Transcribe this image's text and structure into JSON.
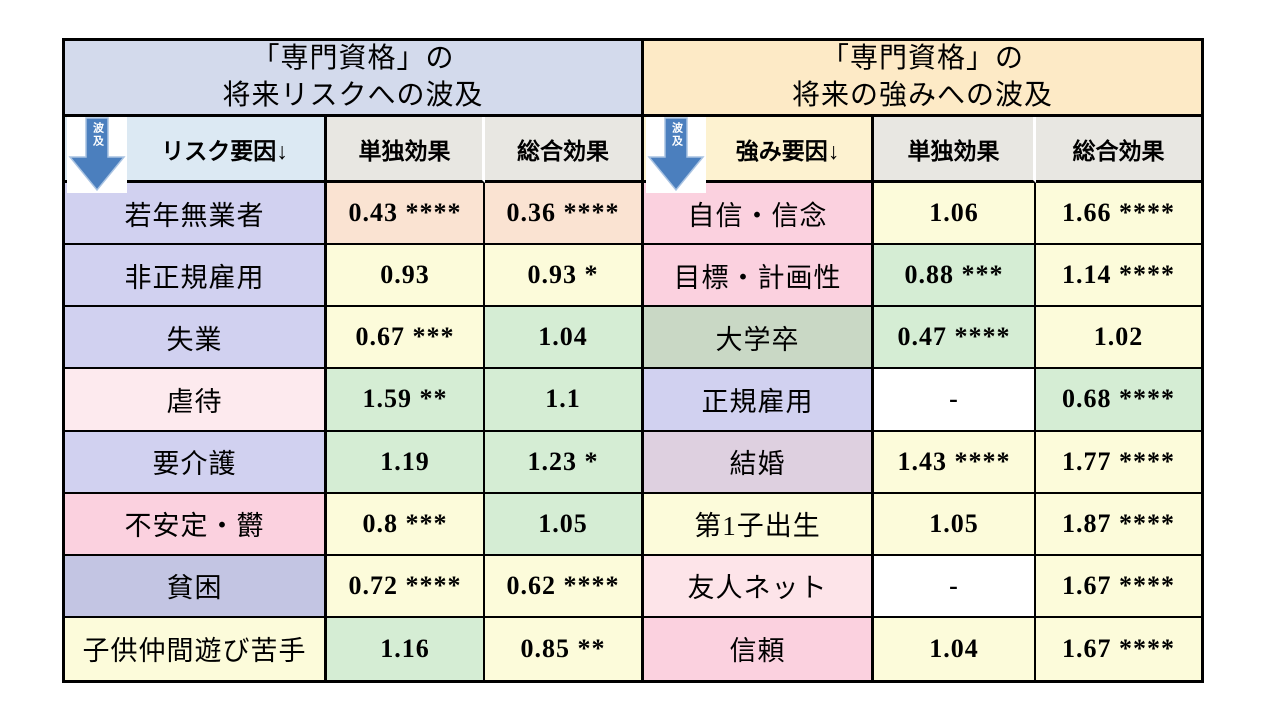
{
  "colors": {
    "title_left_bg": "#d3daec",
    "title_right_bg": "#fdeac6",
    "subheader_left_bg": "#dce9f3",
    "subheader_right_bg": "#fdf2d0",
    "subheader_gray_bg": "#e8e7e2",
    "lavender": "#d1d1f0",
    "lavender_dark": "#c3c5e3",
    "pink": "#fbd1df",
    "pink_light": "#fdeaee",
    "pink_pale": "#fde4e9",
    "sage": "#c9d8c5",
    "lilac": "#ded0e0",
    "cream": "#fcfbda",
    "peach": "#fae3d2",
    "green": "#d5edd4",
    "white": "#ffffff",
    "arrow_blue": "#4b7fbe",
    "arrow_outline": "#a9c3e2",
    "border": "#000000"
  },
  "left_table": {
    "title_line1": "「専門資格」の",
    "title_line2": "将来リスクへの波及",
    "arrow_label": "波及",
    "factor_header": "リスク要因↓",
    "single_header": "単独効果",
    "total_header": "総合効果",
    "rows": [
      {
        "label": "若年無業者",
        "single": "0.43 ****",
        "total": "0.36 ****",
        "label_bg": "lavender",
        "single_bg": "peach",
        "total_bg": "peach"
      },
      {
        "label": "非正規雇用",
        "single": "0.93",
        "total": "0.93 *",
        "label_bg": "lavender",
        "single_bg": "cream",
        "total_bg": "cream"
      },
      {
        "label": "失業",
        "single": "0.67 ***",
        "total": "1.04",
        "label_bg": "lavender",
        "single_bg": "cream",
        "total_bg": "green"
      },
      {
        "label": "虐待",
        "single": "1.59 **",
        "total": "1.1",
        "label_bg": "pink_light",
        "single_bg": "green",
        "total_bg": "green"
      },
      {
        "label": "要介護",
        "single": "1.19",
        "total": "1.23 *",
        "label_bg": "lavender",
        "single_bg": "green",
        "total_bg": "green"
      },
      {
        "label": "不安定・欝",
        "single": "0.8 ***",
        "total": "1.05",
        "label_bg": "pink",
        "single_bg": "cream",
        "total_bg": "green"
      },
      {
        "label": "貧困",
        "single": "0.72 ****",
        "total": "0.62 ****",
        "label_bg": "lavender_dark",
        "single_bg": "cream",
        "total_bg": "cream"
      },
      {
        "label": "子供仲間遊び苦手",
        "single": "1.16",
        "total": "0.85 **",
        "label_bg": "cream",
        "single_bg": "green",
        "total_bg": "cream"
      }
    ]
  },
  "right_table": {
    "title_line1": "「専門資格」の",
    "title_line2": "将来の強みへの波及",
    "arrow_label": "波及",
    "factor_header": "強み要因↓",
    "single_header": "単独効果",
    "total_header": "総合効果",
    "rows": [
      {
        "label": "自信・信念",
        "single": "1.06",
        "total": "1.66 ****",
        "label_bg": "pink",
        "single_bg": "cream",
        "total_bg": "cream"
      },
      {
        "label": "目標・計画性",
        "single": "0.88 ***",
        "total": "1.14 ****",
        "label_bg": "pink",
        "single_bg": "green",
        "total_bg": "cream"
      },
      {
        "label": "大学卒",
        "single": "0.47 ****",
        "total": "1.02",
        "label_bg": "sage",
        "single_bg": "green",
        "total_bg": "cream"
      },
      {
        "label": "正規雇用",
        "single": "-",
        "total": "0.68 ****",
        "label_bg": "lavender",
        "single_bg": "white",
        "total_bg": "green"
      },
      {
        "label": "結婚",
        "single": "1.43 ****",
        "total": "1.77 ****",
        "label_bg": "lilac",
        "single_bg": "cream",
        "total_bg": "cream"
      },
      {
        "label": "第1子出生",
        "single": "1.05",
        "total": "1.87 ****",
        "label_bg": "cream",
        "single_bg": "cream",
        "total_bg": "cream"
      },
      {
        "label": "友人ネット",
        "single": "-",
        "total": "1.67 ****",
        "label_bg": "pink_pale",
        "single_bg": "white",
        "total_bg": "cream"
      },
      {
        "label": "信頼",
        "single": "1.04",
        "total": "1.67 ****",
        "label_bg": "pink",
        "single_bg": "cream",
        "total_bg": "cream"
      }
    ]
  },
  "chart_data": [
    {
      "type": "table",
      "title": "「専門資格」の将来リスクへの波及",
      "columns": [
        "リスク要因",
        "単独効果",
        "総合効果"
      ],
      "rows": [
        [
          "若年無業者",
          "0.43 ****",
          "0.36 ****"
        ],
        [
          "非正規雇用",
          "0.93",
          "0.93 *"
        ],
        [
          "失業",
          "0.67 ***",
          "1.04"
        ],
        [
          "虐待",
          "1.59 **",
          "1.1"
        ],
        [
          "要介護",
          "1.19",
          "1.23 *"
        ],
        [
          "不安定・欝",
          "0.8 ***",
          "1.05"
        ],
        [
          "貧困",
          "0.72 ****",
          "0.62 ****"
        ],
        [
          "子供仲間遊び苦手",
          "1.16",
          "0.85 **"
        ]
      ]
    },
    {
      "type": "table",
      "title": "「専門資格」の将来の強みへの波及",
      "columns": [
        "強み要因",
        "単独効果",
        "総合効果"
      ],
      "rows": [
        [
          "自信・信念",
          "1.06",
          "1.66 ****"
        ],
        [
          "目標・計画性",
          "0.88 ***",
          "1.14 ****"
        ],
        [
          "大学卒",
          "0.47 ****",
          "1.02"
        ],
        [
          "正規雇用",
          "-",
          "0.68 ****"
        ],
        [
          "結婚",
          "1.43 ****",
          "1.77 ****"
        ],
        [
          "第1子出生",
          "1.05",
          "1.87 ****"
        ],
        [
          "友人ネット",
          "-",
          "1.67 ****"
        ],
        [
          "信頼",
          "1.04",
          "1.67 ****"
        ]
      ]
    }
  ]
}
